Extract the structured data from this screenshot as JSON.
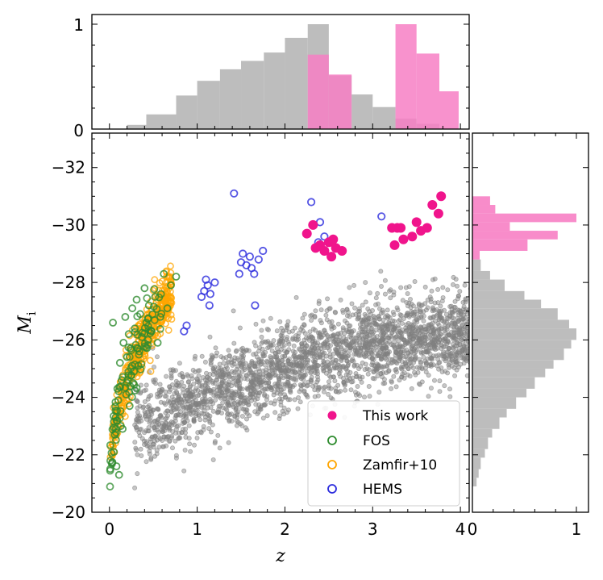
{
  "chart_data": {
    "type": "scatter",
    "xlabel": "z",
    "ylabel": "M",
    "ylabel_sub": "i",
    "xlim": [
      -0.2,
      4.1
    ],
    "ylim": [
      -20,
      -33.2
    ],
    "x_ticks": [
      "0",
      "1",
      "2",
      "3",
      "4"
    ],
    "y_ticks": [
      "−32",
      "−30",
      "−28",
      "−26",
      "−24",
      "−22",
      "−20"
    ],
    "top_hist_ticks": [
      "0",
      "1"
    ],
    "right_hist_ticks": [
      "0",
      "1"
    ],
    "colors": {
      "this_work": "#f0148c",
      "fos": "#2e8b2e",
      "zamfir": "#ffa500",
      "hems": "#2b2bdd",
      "background": "#808080",
      "hist_gray": "#bdbdbd",
      "hist_pink": "#f77fc4"
    },
    "legend": {
      "placement": "lower-right",
      "entries": [
        {
          "key": "this_work",
          "label": "This work",
          "marker": "filled"
        },
        {
          "key": "fos",
          "label": "FOS",
          "marker": "open"
        },
        {
          "key": "zamfir",
          "label": "Zamfir+10",
          "marker": "open"
        },
        {
          "key": "hems",
          "label": "HEMS",
          "marker": "open"
        }
      ]
    },
    "series": [
      {
        "key": "this_work",
        "name": "This work",
        "points": [
          [
            2.25,
            -29.7
          ],
          [
            2.32,
            -30.0
          ],
          [
            2.35,
            -29.2
          ],
          [
            2.4,
            -29.3
          ],
          [
            2.45,
            -29.1
          ],
          [
            2.5,
            -29.4
          ],
          [
            2.55,
            -29.5
          ],
          [
            2.58,
            -29.2
          ],
          [
            2.65,
            -29.1
          ],
          [
            2.53,
            -28.9
          ],
          [
            3.22,
            -29.9
          ],
          [
            3.28,
            -29.9
          ],
          [
            3.32,
            -29.9
          ],
          [
            3.25,
            -29.3
          ],
          [
            3.35,
            -29.5
          ],
          [
            3.45,
            -29.6
          ],
          [
            3.5,
            -30.1
          ],
          [
            3.55,
            -29.8
          ],
          [
            3.62,
            -29.9
          ],
          [
            3.68,
            -30.7
          ],
          [
            3.75,
            -30.4
          ],
          [
            3.78,
            -31.0
          ]
        ]
      },
      {
        "key": "fos",
        "name": "FOS",
        "points": [
          [
            0.04,
            -26.6
          ],
          [
            0.05,
            -22.1
          ],
          [
            0.06,
            -22.7
          ],
          [
            0.07,
            -23.3
          ],
          [
            0.08,
            -21.6
          ],
          [
            0.09,
            -24.3
          ],
          [
            0.1,
            -23.9
          ],
          [
            0.12,
            -25.2
          ],
          [
            0.13,
            -23.0
          ],
          [
            0.14,
            -24.6
          ],
          [
            0.16,
            -25.9
          ],
          [
            0.18,
            -26.8
          ],
          [
            0.19,
            -24.1
          ],
          [
            0.2,
            -25.4
          ],
          [
            0.22,
            -26.2
          ],
          [
            0.24,
            -25.7
          ],
          [
            0.26,
            -27.1
          ],
          [
            0.27,
            -24.5
          ],
          [
            0.29,
            -26.4
          ],
          [
            0.31,
            -27.4
          ],
          [
            0.33,
            -25.1
          ],
          [
            0.35,
            -26.9
          ],
          [
            0.37,
            -26.1
          ],
          [
            0.4,
            -27.8
          ],
          [
            0.42,
            -26.6
          ],
          [
            0.45,
            -27.2
          ],
          [
            0.48,
            -26.3
          ],
          [
            0.52,
            -27.5
          ],
          [
            0.55,
            -25.9
          ],
          [
            0.58,
            -26.8
          ],
          [
            0.62,
            -28.3
          ],
          [
            0.66,
            -27.1
          ],
          [
            0.7,
            -27.9
          ],
          [
            0.76,
            -28.2
          ],
          [
            0.15,
            -22.9
          ],
          [
            0.23,
            -23.7
          ],
          [
            0.11,
            -21.3
          ],
          [
            0.28,
            -24.9
          ],
          [
            0.34,
            -25.6
          ],
          [
            0.44,
            -26.0
          ]
        ]
      },
      {
        "key": "hems",
        "name": "HEMS",
        "points": [
          [
            0.85,
            -26.3
          ],
          [
            0.88,
            -26.5
          ],
          [
            1.05,
            -27.5
          ],
          [
            1.08,
            -27.7
          ],
          [
            1.1,
            -28.1
          ],
          [
            1.12,
            -27.9
          ],
          [
            1.15,
            -27.6
          ],
          [
            1.2,
            -28.0
          ],
          [
            1.14,
            -27.2
          ],
          [
            1.42,
            -31.1
          ],
          [
            1.48,
            -28.3
          ],
          [
            1.5,
            -28.7
          ],
          [
            1.52,
            -29.0
          ],
          [
            1.56,
            -28.6
          ],
          [
            1.6,
            -28.9
          ],
          [
            1.62,
            -28.5
          ],
          [
            1.65,
            -28.3
          ],
          [
            1.7,
            -28.8
          ],
          [
            1.75,
            -29.1
          ],
          [
            1.66,
            -27.2
          ],
          [
            2.3,
            -30.8
          ],
          [
            2.38,
            -29.4
          ],
          [
            2.4,
            -30.1
          ],
          [
            2.45,
            -29.6
          ],
          [
            3.1,
            -30.3
          ]
        ]
      },
      {
        "key": "zamfir",
        "name": "Zamfir+10",
        "points": []
      },
      {
        "key": "background",
        "name": "",
        "points": []
      }
    ],
    "top_histogram": {
      "gray": [
        {
          "x0": 0.2,
          "x1": 0.42,
          "h": 0.04
        },
        {
          "x0": 0.42,
          "x1": 0.76,
          "h": 0.14
        },
        {
          "x0": 0.76,
          "x1": 1.0,
          "h": 0.32
        },
        {
          "x0": 1.0,
          "x1": 1.26,
          "h": 0.46
        },
        {
          "x0": 1.26,
          "x1": 1.5,
          "h": 0.57
        },
        {
          "x0": 1.5,
          "x1": 1.76,
          "h": 0.65
        },
        {
          "x0": 1.76,
          "x1": 2.0,
          "h": 0.73
        },
        {
          "x0": 2.0,
          "x1": 2.26,
          "h": 0.87
        },
        {
          "x0": 2.26,
          "x1": 2.5,
          "h": 1.0
        },
        {
          "x0": 2.5,
          "x1": 2.76,
          "h": 0.51
        },
        {
          "x0": 2.76,
          "x1": 3.0,
          "h": 0.33
        },
        {
          "x0": 3.0,
          "x1": 3.26,
          "h": 0.21
        },
        {
          "x0": 3.26,
          "x1": 3.5,
          "h": 0.1
        },
        {
          "x0": 3.5,
          "x1": 3.76,
          "h": 0.05
        }
      ],
      "pink": [
        {
          "x0": 2.26,
          "x1": 2.5,
          "h": 0.71
        },
        {
          "x0": 2.5,
          "x1": 2.76,
          "h": 0.52
        },
        {
          "x0": 3.26,
          "x1": 3.5,
          "h": 1.0
        },
        {
          "x0": 3.5,
          "x1": 3.76,
          "h": 0.72
        },
        {
          "x0": 3.76,
          "x1": 3.98,
          "h": 0.36
        }
      ]
    },
    "right_histogram": {
      "gray": [
        {
          "y0": -20.9,
          "y1": -21.2,
          "w": 0.04
        },
        {
          "y0": -21.2,
          "y1": -21.5,
          "w": 0.06
        },
        {
          "y0": -21.5,
          "y1": -21.9,
          "w": 0.08
        },
        {
          "y0": -21.9,
          "y1": -22.2,
          "w": 0.12
        },
        {
          "y0": -22.2,
          "y1": -22.6,
          "w": 0.15
        },
        {
          "y0": -22.6,
          "y1": -22.9,
          "w": 0.19
        },
        {
          "y0": -22.9,
          "y1": -23.3,
          "w": 0.26
        },
        {
          "y0": -23.3,
          "y1": -23.6,
          "w": 0.33
        },
        {
          "y0": -23.6,
          "y1": -24.0,
          "w": 0.42
        },
        {
          "y0": -24.0,
          "y1": -24.3,
          "w": 0.52
        },
        {
          "y0": -24.3,
          "y1": -24.7,
          "w": 0.6
        },
        {
          "y0": -24.7,
          "y1": -25.0,
          "w": 0.7
        },
        {
          "y0": -25.0,
          "y1": -25.3,
          "w": 0.78
        },
        {
          "y0": -25.3,
          "y1": -25.7,
          "w": 0.88
        },
        {
          "y0": -25.7,
          "y1": -26.0,
          "w": 0.95
        },
        {
          "y0": -26.0,
          "y1": -26.4,
          "w": 1.0
        },
        {
          "y0": -26.4,
          "y1": -26.7,
          "w": 0.93
        },
        {
          "y0": -26.7,
          "y1": -27.1,
          "w": 0.82
        },
        {
          "y0": -27.1,
          "y1": -27.4,
          "w": 0.66
        },
        {
          "y0": -27.4,
          "y1": -27.7,
          "w": 0.5
        },
        {
          "y0": -27.7,
          "y1": -28.1,
          "w": 0.31
        },
        {
          "y0": -28.1,
          "y1": -28.4,
          "w": 0.17
        },
        {
          "y0": -28.4,
          "y1": -28.8,
          "w": 0.08
        }
      ],
      "pink": [
        {
          "y0": -28.8,
          "y1": -29.1,
          "w": 0.07
        },
        {
          "y0": -29.1,
          "y1": -29.5,
          "w": 0.53
        },
        {
          "y0": -29.5,
          "y1": -29.8,
          "w": 0.82
        },
        {
          "y0": -29.8,
          "y1": -30.1,
          "w": 0.36
        },
        {
          "y0": -30.1,
          "y1": -30.4,
          "w": 1.0
        },
        {
          "y0": -30.4,
          "y1": -30.7,
          "w": 0.22
        },
        {
          "y0": -30.7,
          "y1": -31.0,
          "w": 0.17
        }
      ]
    }
  }
}
